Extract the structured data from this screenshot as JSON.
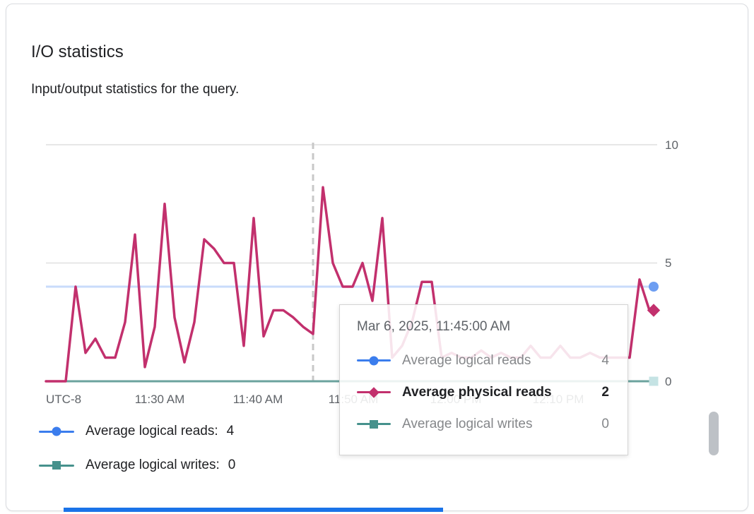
{
  "header": {
    "title": "I/O statistics",
    "subtitle": "Input/output statistics for the query."
  },
  "chart_data": {
    "type": "line",
    "title": "I/O statistics",
    "y_axis": {
      "range": [
        0,
        10
      ],
      "gridlines": [
        10,
        5
      ],
      "ticks": [
        "10",
        "5",
        "0"
      ]
    },
    "x_axis": {
      "timezone_label": "UTC-8",
      "ticks": [
        "11:30 AM",
        "11:40 AM",
        "11:50 AM",
        "12:00 PM",
        "12:10 PM"
      ]
    },
    "cursor": {
      "index": 27,
      "timestamp": "Mar 6, 2025, 11:45:00 AM"
    },
    "series": [
      {
        "name": "Average logical reads",
        "color": "#3b7ded",
        "line_color": "#c9dbfb",
        "marker": "circle",
        "marker_fill": "#6d9ef2",
        "style": "constant",
        "value": 4
      },
      {
        "name": "Average physical reads",
        "color": "#c2306d",
        "marker": "diamond",
        "marker_fill": "#c2306d",
        "values": [
          0,
          0,
          0,
          4,
          1.2,
          1.8,
          1,
          1,
          2.5,
          6.2,
          0.6,
          2.3,
          7.5,
          2.7,
          0.8,
          2.5,
          6,
          5.6,
          5,
          5,
          1.5,
          6.9,
          1.9,
          3,
          3,
          2.7,
          2.3,
          2,
          8.2,
          5,
          4,
          4,
          5,
          3.4,
          6.9,
          1,
          1.5,
          2.5,
          4.2,
          4.2,
          1,
          1.2,
          1,
          1,
          1.3,
          1,
          1.2,
          1,
          1,
          1.5,
          1,
          1,
          1.5,
          1,
          1,
          1.2,
          1,
          1,
          1,
          1,
          4.3,
          3
        ]
      },
      {
        "name": "Average logical writes",
        "color": "#46918c",
        "line_color": "#6ba39e",
        "marker": "square",
        "marker_fill": "#c5e3e4",
        "style": "constant",
        "value": 0
      }
    ]
  },
  "tooltip": {
    "timestamp": "Mar 6, 2025, 11:45:00 AM",
    "rows": [
      {
        "label": "Average logical reads",
        "value": "4",
        "emphasis": false
      },
      {
        "label": "Average physical reads",
        "value": "2",
        "emphasis": true
      },
      {
        "label": "Average logical writes",
        "value": "0",
        "emphasis": false
      }
    ]
  },
  "legend": [
    {
      "label": "Average logical reads:",
      "value": "4"
    },
    {
      "label": "Average logical writes:",
      "value": "0"
    }
  ]
}
